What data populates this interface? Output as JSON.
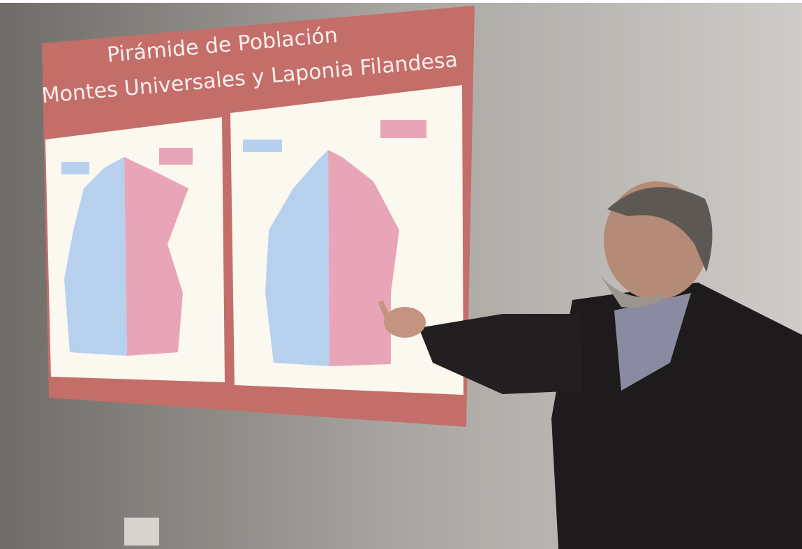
{
  "slide": {
    "title_line1": "Pirámide de Población",
    "title_line2": "Montes Universales y Laponia Filandesa"
  }
}
